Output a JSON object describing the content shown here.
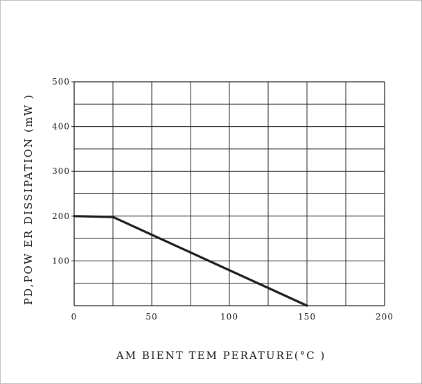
{
  "chart_data": {
    "type": "line",
    "xlabel": "AM BIENT TEM PERATURE(°C )",
    "ylabel": "PD,POW ER DISSIPATION (mW )",
    "xlim": [
      0,
      200
    ],
    "ylim": [
      0,
      500
    ],
    "x_ticks": [
      0,
      50,
      100,
      150,
      200
    ],
    "y_ticks": [
      100,
      200,
      300,
      400,
      500
    ],
    "x_tick_labels": [
      "0",
      "50",
      "100",
      "150",
      "200"
    ],
    "y_tick_labels": [
      "100",
      "200",
      "300",
      "400",
      "500"
    ],
    "grid": true,
    "series": [
      {
        "x": [
          0,
          25,
          150
        ],
        "y": [
          200,
          198,
          0
        ],
        "color": "#1a1a1a"
      }
    ]
  }
}
